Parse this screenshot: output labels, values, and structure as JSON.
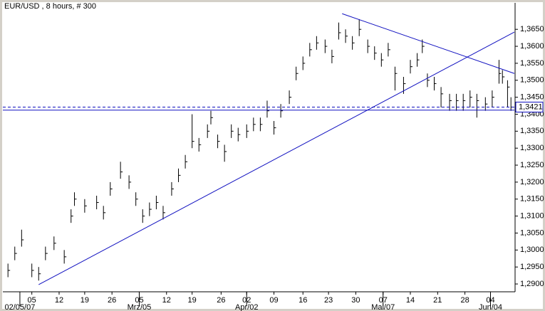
{
  "chart_data": {
    "type": "ohlc",
    "title": "EUR/USD , 8 hours, # 300",
    "color": "#000000",
    "line_color": "#1010c0",
    "xlim": [
      0,
      300
    ],
    "ylim": [
      1.2877,
      1.3728
    ],
    "x": [
      3,
      7,
      11,
      17,
      21,
      25,
      30,
      36,
      40,
      42,
      48,
      55,
      59,
      63,
      69,
      74,
      78,
      82,
      86,
      90,
      94,
      99,
      103,
      107,
      111,
      115,
      120,
      122,
      126,
      130,
      134,
      138,
      143,
      147,
      151,
      155,
      159,
      163,
      168,
      172,
      176,
      180,
      184,
      189,
      193,
      197,
      201,
      205,
      209,
      214,
      218,
      222,
      226,
      230,
      235,
      239,
      243,
      246,
      249,
      253,
      257,
      262,
      266,
      270,
      274,
      278,
      283,
      287,
      291,
      293,
      296,
      298
    ],
    "high": [
      1.296,
      1.301,
      1.306,
      1.296,
      1.295,
      1.301,
      1.304,
      1.3,
      1.312,
      1.317,
      1.315,
      1.316,
      1.313,
      1.32,
      1.326,
      1.322,
      1.317,
      1.312,
      1.314,
      1.316,
      1.313,
      1.32,
      1.324,
      1.328,
      1.34,
      1.333,
      1.337,
      1.341,
      1.334,
      1.331,
      1.337,
      1.336,
      1.337,
      1.339,
      1.339,
      1.344,
      1.338,
      1.343,
      1.347,
      1.354,
      1.357,
      1.361,
      1.363,
      1.362,
      1.359,
      1.367,
      1.365,
      1.363,
      1.368,
      1.362,
      1.36,
      1.358,
      1.361,
      1.354,
      1.351,
      1.356,
      1.358,
      1.362,
      1.352,
      1.351,
      1.348,
      1.346,
      1.346,
      1.346,
      1.347,
      1.346,
      1.345,
      1.347,
      1.356,
      1.353,
      1.35,
      1.345
    ],
    "low": [
      1.292,
      1.297,
      1.301,
      1.292,
      1.291,
      1.297,
      1.3,
      1.296,
      1.308,
      1.313,
      1.311,
      1.312,
      1.309,
      1.316,
      1.321,
      1.318,
      1.313,
      1.308,
      1.31,
      1.312,
      1.309,
      1.316,
      1.32,
      1.324,
      1.33,
      1.329,
      1.333,
      1.337,
      1.33,
      1.326,
      1.333,
      1.332,
      1.333,
      1.335,
      1.335,
      1.339,
      1.334,
      1.339,
      1.343,
      1.35,
      1.353,
      1.357,
      1.359,
      1.358,
      1.355,
      1.362,
      1.361,
      1.359,
      1.363,
      1.358,
      1.356,
      1.354,
      1.357,
      1.347,
      1.346,
      1.352,
      1.354,
      1.358,
      1.348,
      1.347,
      1.342,
      1.341,
      1.341,
      1.341,
      1.342,
      1.339,
      1.341,
      1.342,
      1.349,
      1.349,
      1.342,
      1.341
    ],
    "close": [
      1.294,
      1.299,
      1.303,
      1.294,
      1.293,
      1.299,
      1.302,
      1.298,
      1.31,
      1.315,
      1.313,
      1.314,
      1.311,
      1.318,
      1.323,
      1.32,
      1.315,
      1.31,
      1.312,
      1.314,
      1.311,
      1.318,
      1.322,
      1.326,
      1.332,
      1.331,
      1.335,
      1.339,
      1.332,
      1.329,
      1.335,
      1.334,
      1.335,
      1.337,
      1.337,
      1.341,
      1.336,
      1.341,
      1.345,
      1.352,
      1.355,
      1.359,
      1.361,
      1.36,
      1.357,
      1.364,
      1.363,
      1.361,
      1.365,
      1.36,
      1.358,
      1.356,
      1.359,
      1.352,
      1.349,
      1.354,
      1.356,
      1.36,
      1.35,
      1.349,
      1.346,
      1.344,
      1.344,
      1.344,
      1.345,
      1.344,
      1.343,
      1.345,
      1.352,
      1.351,
      1.348,
      1.3421
    ],
    "yticks": [
      {
        "value": 1.29,
        "label": "1,2900"
      },
      {
        "value": 1.295,
        "label": "1,2950"
      },
      {
        "value": 1.3,
        "label": "1,3000"
      },
      {
        "value": 1.305,
        "label": "1,3050"
      },
      {
        "value": 1.31,
        "label": "1,3100"
      },
      {
        "value": 1.315,
        "label": "1,3150"
      },
      {
        "value": 1.32,
        "label": "1,3200"
      },
      {
        "value": 1.325,
        "label": "1,3250"
      },
      {
        "value": 1.33,
        "label": "1,3300"
      },
      {
        "value": 1.335,
        "label": "1,3350"
      },
      {
        "value": 1.34,
        "label": "1,3400"
      },
      {
        "value": 1.345,
        "label": "1,3450"
      },
      {
        "value": 1.35,
        "label": "1,3500"
      },
      {
        "value": 1.355,
        "label": "1,3550"
      },
      {
        "value": 1.36,
        "label": "1,3600"
      },
      {
        "value": 1.365,
        "label": "1,3650"
      }
    ],
    "xticks": [
      {
        "value": 17,
        "label": "05"
      },
      {
        "value": 33,
        "label": "12"
      },
      {
        "value": 48,
        "label": "19"
      },
      {
        "value": 64,
        "label": "26"
      },
      {
        "value": 80,
        "label": "05"
      },
      {
        "value": 96,
        "label": "12"
      },
      {
        "value": 111,
        "label": "19"
      },
      {
        "value": 128,
        "label": "26"
      },
      {
        "value": 143,
        "label": "02"
      },
      {
        "value": 159,
        "label": "09"
      },
      {
        "value": 176,
        "label": "16"
      },
      {
        "value": 191,
        "label": "23"
      },
      {
        "value": 207,
        "label": "30"
      },
      {
        "value": 223,
        "label": "07"
      },
      {
        "value": 239,
        "label": "14"
      },
      {
        "value": 255,
        "label": "21"
      },
      {
        "value": 271,
        "label": "28"
      },
      {
        "value": 286,
        "label": "04"
      }
    ],
    "xticks_secondary": [
      {
        "value": 10,
        "label": "02/05/07"
      },
      {
        "value": 80,
        "label": "Mrz/05"
      },
      {
        "value": 143,
        "label": "Apr/02"
      },
      {
        "value": 223,
        "label": "Mai/07"
      },
      {
        "value": 286,
        "label": "Jun/04"
      }
    ],
    "trend_lines": [
      {
        "x": [
          21,
          300
        ],
        "y": [
          1.2898,
          1.3642
        ]
      },
      {
        "x": [
          199,
          300
        ],
        "y": [
          1.3696,
          1.352
        ]
      }
    ],
    "hlines": [
      {
        "value": 1.3412,
        "style": "solid"
      },
      {
        "value": 1.3421,
        "style": "dashed",
        "label": "1,3421"
      }
    ]
  }
}
